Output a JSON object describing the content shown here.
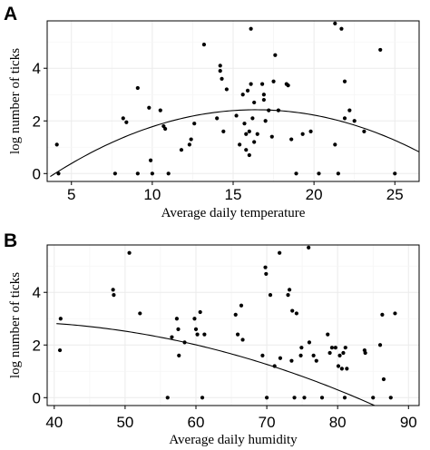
{
  "chart_data": [
    {
      "type": "scatter",
      "panel_label": "A",
      "xlabel": "Average daily temperature",
      "ylabel": "log number of ticks",
      "xlim": [
        3.5,
        26.5
      ],
      "ylim": [
        -0.3,
        5.8
      ],
      "xticks": [
        5,
        10,
        15,
        20,
        25
      ],
      "yticks": [
        0,
        2,
        4
      ],
      "grid": true,
      "points": [
        [
          4.1,
          1.1
        ],
        [
          4.2,
          0.0
        ],
        [
          7.7,
          0.0
        ],
        [
          8.2,
          2.1
        ],
        [
          8.4,
          1.95
        ],
        [
          9.1,
          3.25
        ],
        [
          9.1,
          0.0
        ],
        [
          9.9,
          0.5
        ],
        [
          9.8,
          2.5
        ],
        [
          10.0,
          0.0
        ],
        [
          10.5,
          2.4
        ],
        [
          10.7,
          1.8
        ],
        [
          10.8,
          1.7
        ],
        [
          11.0,
          0.0
        ],
        [
          11.8,
          0.9
        ],
        [
          12.3,
          1.1
        ],
        [
          12.4,
          1.3
        ],
        [
          12.6,
          1.9
        ],
        [
          13.2,
          4.9
        ],
        [
          14.0,
          2.1
        ],
        [
          14.2,
          4.1
        ],
        [
          14.2,
          3.9
        ],
        [
          14.3,
          3.6
        ],
        [
          14.4,
          1.6
        ],
        [
          14.6,
          3.2
        ],
        [
          15.2,
          2.2
        ],
        [
          15.4,
          1.1
        ],
        [
          15.6,
          3.0
        ],
        [
          15.7,
          1.9
        ],
        [
          15.8,
          1.5
        ],
        [
          15.8,
          0.9
        ],
        [
          15.9,
          3.15
        ],
        [
          16.0,
          1.6
        ],
        [
          16.0,
          0.7
        ],
        [
          16.1,
          3.4
        ],
        [
          16.1,
          5.5
        ],
        [
          16.2,
          2.1
        ],
        [
          16.3,
          1.2
        ],
        [
          16.3,
          2.7
        ],
        [
          16.5,
          1.5
        ],
        [
          16.8,
          3.4
        ],
        [
          16.9,
          3.0
        ],
        [
          16.9,
          2.8
        ],
        [
          17.0,
          2.0
        ],
        [
          17.2,
          2.4
        ],
        [
          17.4,
          1.4
        ],
        [
          17.5,
          3.5
        ],
        [
          17.6,
          4.5
        ],
        [
          17.8,
          2.4
        ],
        [
          18.3,
          3.4
        ],
        [
          18.4,
          3.35
        ],
        [
          18.6,
          1.3
        ],
        [
          18.9,
          0.0
        ],
        [
          19.3,
          1.5
        ],
        [
          19.8,
          1.6
        ],
        [
          20.3,
          0.0
        ],
        [
          21.3,
          1.1
        ],
        [
          21.3,
          5.7
        ],
        [
          21.5,
          0.0
        ],
        [
          21.7,
          5.5
        ],
        [
          21.9,
          3.5
        ],
        [
          21.9,
          2.1
        ],
        [
          22.2,
          2.4
        ],
        [
          22.5,
          2.0
        ],
        [
          23.1,
          1.6
        ],
        [
          24.1,
          4.7
        ],
        [
          25.0,
          0.0
        ]
      ],
      "fit": {
        "model": "quadratic",
        "coefficients": [
          -1.8,
          0.515,
          -0.0157
        ]
      }
    },
    {
      "type": "scatter",
      "panel_label": "B",
      "xlabel": "Average daily humidity",
      "ylabel": "log number of ticks",
      "xlim": [
        39.0,
        91.5
      ],
      "ylim": [
        -0.3,
        5.8
      ],
      "xticks": [
        40,
        50,
        60,
        70,
        80,
        90
      ],
      "yticks": [
        0,
        2,
        4
      ],
      "grid": true,
      "points": [
        [
          40.9,
          3.0
        ],
        [
          40.8,
          1.8
        ],
        [
          48.3,
          4.1
        ],
        [
          48.4,
          3.9
        ],
        [
          50.6,
          5.5
        ],
        [
          52.1,
          3.2
        ],
        [
          56.0,
          0.0
        ],
        [
          56.6,
          2.3
        ],
        [
          57.3,
          3.0
        ],
        [
          57.5,
          2.6
        ],
        [
          57.6,
          1.6
        ],
        [
          58.4,
          2.1
        ],
        [
          59.8,
          3.0
        ],
        [
          60.0,
          2.6
        ],
        [
          60.2,
          2.4
        ],
        [
          60.6,
          3.25
        ],
        [
          60.9,
          0.0
        ],
        [
          61.2,
          2.4
        ],
        [
          65.6,
          3.15
        ],
        [
          65.9,
          2.4
        ],
        [
          66.4,
          3.5
        ],
        [
          66.6,
          2.2
        ],
        [
          69.4,
          1.6
        ],
        [
          69.8,
          4.95
        ],
        [
          69.9,
          4.7
        ],
        [
          70.0,
          0.0
        ],
        [
          70.5,
          3.9
        ],
        [
          71.1,
          1.2
        ],
        [
          71.8,
          5.5
        ],
        [
          71.9,
          1.5
        ],
        [
          73.0,
          3.9
        ],
        [
          73.2,
          4.1
        ],
        [
          73.5,
          1.4
        ],
        [
          73.6,
          3.3
        ],
        [
          73.9,
          0.0
        ],
        [
          74.2,
          3.2
        ],
        [
          74.8,
          1.6
        ],
        [
          74.9,
          1.9
        ],
        [
          75.3,
          0.0
        ],
        [
          75.9,
          5.7
        ],
        [
          76.0,
          2.1
        ],
        [
          76.6,
          1.6
        ],
        [
          77.0,
          1.4
        ],
        [
          77.8,
          0.0
        ],
        [
          78.6,
          2.4
        ],
        [
          78.9,
          1.7
        ],
        [
          79.2,
          1.9
        ],
        [
          79.7,
          1.9
        ],
        [
          80.1,
          1.2
        ],
        [
          80.3,
          1.6
        ],
        [
          80.6,
          1.1
        ],
        [
          80.8,
          1.7
        ],
        [
          81.0,
          0.0
        ],
        [
          81.1,
          1.9
        ],
        [
          81.3,
          1.1
        ],
        [
          83.8,
          1.8
        ],
        [
          83.9,
          1.7
        ],
        [
          85.0,
          0.0
        ],
        [
          86.0,
          2.0
        ],
        [
          86.3,
          3.15
        ],
        [
          86.5,
          0.7
        ],
        [
          87.5,
          0.0
        ],
        [
          88.1,
          3.2
        ]
      ],
      "fit": {
        "model": "quadratic",
        "coefficients": [
          1.76,
          0.0713,
          -0.00112
        ]
      }
    }
  ]
}
